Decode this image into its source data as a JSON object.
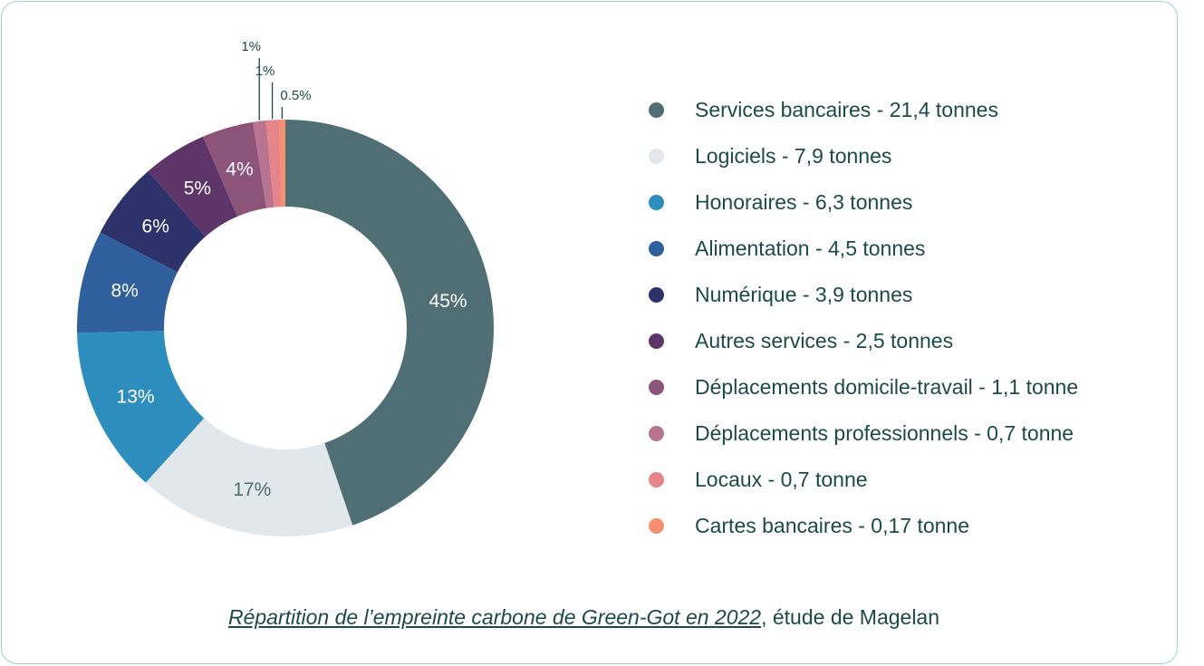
{
  "chart_data": {
    "type": "pie",
    "variant": "donut",
    "title": "",
    "slices": [
      {
        "label": "Services bancaires - 21,4 tonnes",
        "value": 45,
        "display": "45%",
        "color": "#4f6f74",
        "text_color": "#ffffff",
        "label_mode": "inside"
      },
      {
        "label": "Logiciels - 7,9 tonnes",
        "value": 17,
        "display": "17%",
        "color": "#e1e7eb",
        "text_color": "#4f6f74",
        "label_mode": "inside"
      },
      {
        "label": "Honoraires - 6,3 tonnes",
        "value": 13,
        "display": "13%",
        "color": "#2d8ebe",
        "text_color": "#ffffff",
        "label_mode": "inside"
      },
      {
        "label": "Alimentation - 4,5 tonnes",
        "value": 8,
        "display": "8%",
        "color": "#2f5f9c",
        "text_color": "#ffffff",
        "label_mode": "inside"
      },
      {
        "label": "Numérique - 3,9 tonnes",
        "value": 6,
        "display": "6%",
        "color": "#2e326b",
        "text_color": "#ffffff",
        "label_mode": "inside"
      },
      {
        "label": "Autres services - 2,5 tonnes",
        "value": 5,
        "display": "5%",
        "color": "#5d3568",
        "text_color": "#ffffff",
        "label_mode": "inside"
      },
      {
        "label": "Déplacements domicile-travail - 1,1 tonne",
        "value": 4,
        "display": "4%",
        "color": "#8c5478",
        "text_color": "#ffffff",
        "label_mode": "inside"
      },
      {
        "label": "Déplacements professionnels - 0,7 tonne",
        "value": 1,
        "display": "1%",
        "color": "#b8738e",
        "text_color": "#1c4a46",
        "label_mode": "outside"
      },
      {
        "label": "Locaux - 0,7 tonne",
        "value": 1,
        "display": "1%",
        "color": "#e5848a",
        "text_color": "#1c4a46",
        "label_mode": "outside"
      },
      {
        "label": "Cartes bancaires - 0,17 tonne",
        "value": 0.5,
        "display": "0.5%",
        "color": "#f58f6e",
        "text_color": "#1c4a46",
        "label_mode": "outside"
      }
    ]
  },
  "caption": {
    "link_text": "Répartition de l’empreinte carbone de Green-Got en 2022",
    "rest_text": ", étude de Magelan"
  }
}
